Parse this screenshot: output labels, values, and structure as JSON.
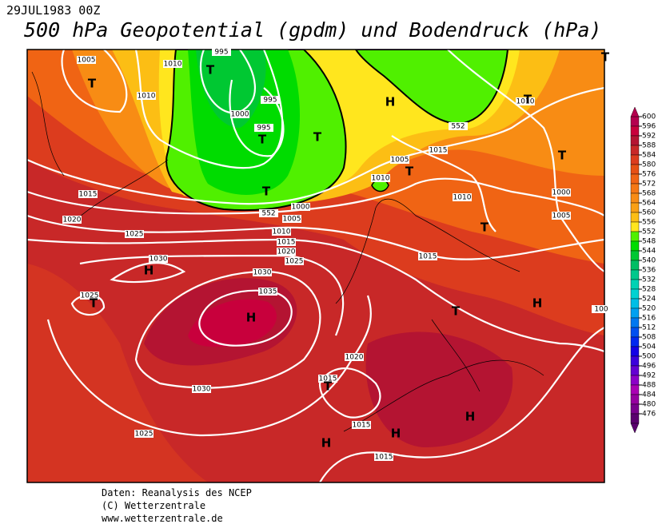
{
  "header": {
    "date": "29JUL1983 00Z",
    "title": "500 hPa Geopotential (gpdm) und Bodendruck (hPa)"
  },
  "map": {
    "pressure_labels": [
      "1005",
      "1010",
      "995",
      "1010",
      "995",
      "1000",
      "995",
      "1010",
      "552",
      "1015",
      "1005",
      "1010",
      "1015",
      "1010",
      "1000",
      "552",
      "1000",
      "1005",
      "1020",
      "1005",
      "1010",
      "1025",
      "1015",
      "1020",
      "1015",
      "1025",
      "1030",
      "1030",
      "1035",
      "1025",
      "1020",
      "1015",
      "1030",
      "1015",
      "1025",
      "1015",
      "100"
    ],
    "centers": [
      "T",
      "T",
      "H",
      "T",
      "T",
      "T",
      "T",
      "T",
      "T",
      "T",
      "H",
      "T",
      "H",
      "T",
      "H",
      "T",
      "H",
      "H",
      "H",
      "T"
    ]
  },
  "colorbar": {
    "levels": [
      600,
      596,
      592,
      588,
      584,
      580,
      576,
      572,
      568,
      564,
      560,
      556,
      552,
      548,
      544,
      540,
      536,
      532,
      528,
      524,
      520,
      516,
      512,
      508,
      504,
      500,
      496,
      492,
      488,
      484,
      480,
      476
    ],
    "colors": [
      "#b4004e",
      "#c8003c",
      "#b41432",
      "#c82828",
      "#dc3c1e",
      "#e65014",
      "#f06414",
      "#f57814",
      "#f88c14",
      "#faa014",
      "#fcbe14",
      "#ffe61e",
      "#50f000",
      "#00dc00",
      "#00c832",
      "#00be64",
      "#00c88c",
      "#00d2b4",
      "#00d2d2",
      "#00bee6",
      "#00a0f0",
      "#0078f0",
      "#0050f0",
      "#0028f0",
      "#1400e6",
      "#3c00dc",
      "#6400d2",
      "#8c00c8",
      "#aa00b4",
      "#9600a0",
      "#78008c",
      "#5a006e"
    ]
  },
  "footer": {
    "lines": [
      "Daten: Reanalysis des NCEP",
      "(C) Wetterzentrale",
      "www.wetterzentrale.de"
    ]
  }
}
